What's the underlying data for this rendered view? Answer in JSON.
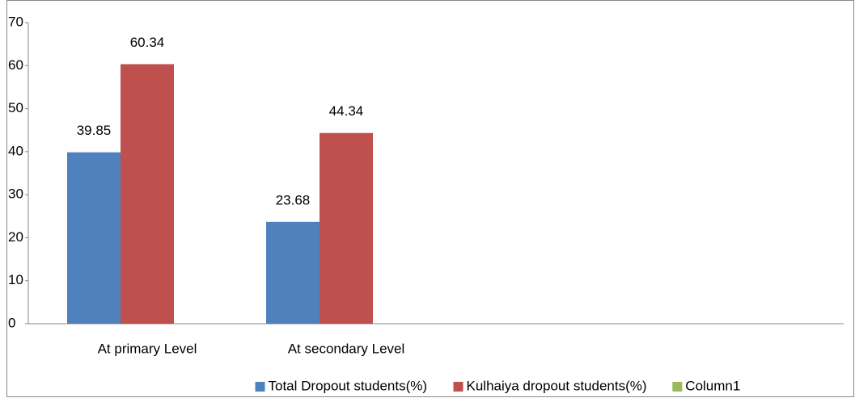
{
  "chart_data": {
    "type": "bar",
    "categories": [
      "At primary Level",
      "At secondary Level",
      null,
      null
    ],
    "series": [
      {
        "name": "Total Dropout students(%)",
        "color": "#4f81bd",
        "values": [
          39.85,
          23.68,
          null,
          null
        ]
      },
      {
        "name": "Kulhaiya dropout students(%)",
        "color": "#c0504d",
        "values": [
          60.34,
          44.34,
          null,
          null
        ]
      },
      {
        "name": "Column1",
        "color": "#9bbb59",
        "values": [
          null,
          null,
          null,
          null
        ]
      }
    ],
    "ylim": [
      0,
      70
    ],
    "yticks": [
      0,
      10,
      20,
      30,
      40,
      50,
      60,
      70
    ],
    "legend": "bottom"
  }
}
